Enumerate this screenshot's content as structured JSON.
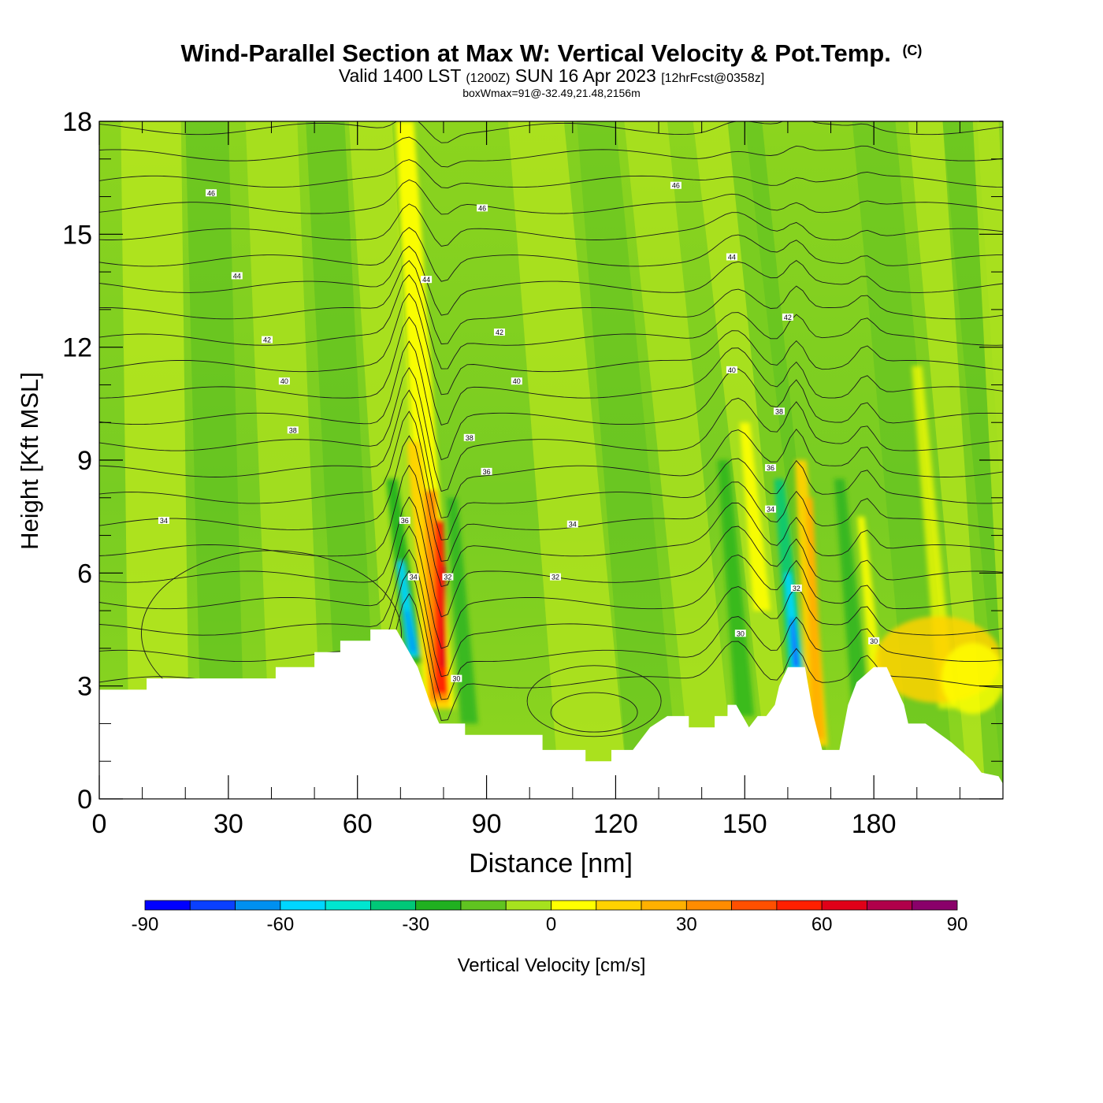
{
  "title": {
    "main": "Wind-Parallel Section at Max W: Vertical Velocity & Pot.Temp.",
    "copyright": "(C)",
    "valid_prefix": "Valid 1400 LST",
    "utc": "(1200Z)",
    "date": "SUN 16 Apr 2023",
    "forecast": "[12hrFcst@0358z]",
    "boxline": "boxWmax=91@-32.49,21.48,2156m"
  },
  "chart_data": {
    "type": "cross-section",
    "xlabel": "Distance [nm]",
    "ylabel": "Height [Kft MSL]",
    "xlim": [
      0,
      210
    ],
    "ylim": [
      0,
      18
    ],
    "x_ticks": [
      0,
      30,
      60,
      90,
      120,
      150,
      180
    ],
    "y_ticks": [
      0,
      3,
      6,
      9,
      12,
      15,
      18
    ],
    "terrain": [
      [
        0,
        2.9
      ],
      [
        11,
        2.9
      ],
      [
        11,
        3.2
      ],
      [
        41,
        3.2
      ],
      [
        41,
        3.5
      ],
      [
        50,
        3.5
      ],
      [
        50,
        3.9
      ],
      [
        56,
        3.9
      ],
      [
        56,
        4.2
      ],
      [
        63,
        4.2
      ],
      [
        63,
        4.5
      ],
      [
        69,
        4.5
      ],
      [
        74,
        3.5
      ],
      [
        77,
        2.5
      ],
      [
        79,
        2.0
      ],
      [
        85,
        2.0
      ],
      [
        85,
        1.7
      ],
      [
        103,
        1.7
      ],
      [
        103,
        1.3
      ],
      [
        113,
        1.3
      ],
      [
        113,
        1.0
      ],
      [
        119,
        1.0
      ],
      [
        119,
        1.3
      ],
      [
        124,
        1.3
      ],
      [
        128,
        1.9
      ],
      [
        132,
        2.2
      ],
      [
        137,
        2.2
      ],
      [
        137,
        1.9
      ],
      [
        143,
        1.9
      ],
      [
        143,
        2.2
      ],
      [
        146,
        2.2
      ],
      [
        146,
        2.5
      ],
      [
        148,
        2.5
      ],
      [
        151,
        1.9
      ],
      [
        153,
        2.2
      ],
      [
        155,
        2.2
      ],
      [
        157,
        2.5
      ],
      [
        158,
        3.0
      ],
      [
        160,
        3.5
      ],
      [
        164,
        3.5
      ],
      [
        166,
        2.2
      ],
      [
        168,
        1.3
      ],
      [
        172,
        1.3
      ],
      [
        174,
        2.5
      ],
      [
        176,
        3.1
      ],
      [
        180,
        3.5
      ],
      [
        183,
        3.5
      ],
      [
        187,
        2.5
      ],
      [
        188,
        2.0
      ],
      [
        192,
        2.0
      ],
      [
        198,
        1.5
      ],
      [
        203,
        1.0
      ],
      [
        205,
        0.7
      ],
      [
        209,
        0.6
      ],
      [
        210,
        0.4
      ]
    ],
    "potential_temperature_contours": [
      30,
      32,
      34,
      36,
      38,
      40,
      42,
      44,
      46
    ],
    "contour_labels": [
      {
        "text": "46",
        "x": 26,
        "y": 16.1
      },
      {
        "text": "46",
        "x": 89,
        "y": 15.7
      },
      {
        "text": "46",
        "x": 134,
        "y": 16.3
      },
      {
        "text": "44",
        "x": 32,
        "y": 13.9
      },
      {
        "text": "44",
        "x": 76,
        "y": 13.8
      },
      {
        "text": "44",
        "x": 147,
        "y": 14.4
      },
      {
        "text": "42",
        "x": 39,
        "y": 12.2
      },
      {
        "text": "42",
        "x": 93,
        "y": 12.4
      },
      {
        "text": "42",
        "x": 160,
        "y": 12.8
      },
      {
        "text": "40",
        "x": 43,
        "y": 11.1
      },
      {
        "text": "40",
        "x": 97,
        "y": 11.1
      },
      {
        "text": "40",
        "x": 147,
        "y": 11.4
      },
      {
        "text": "38",
        "x": 45,
        "y": 9.8
      },
      {
        "text": "38",
        "x": 86,
        "y": 9.6
      },
      {
        "text": "38",
        "x": 158,
        "y": 10.3
      },
      {
        "text": "36",
        "x": 90,
        "y": 8.7
      },
      {
        "text": "36",
        "x": 71,
        "y": 7.4
      },
      {
        "text": "36",
        "x": 156,
        "y": 8.8
      },
      {
        "text": "34",
        "x": 15,
        "y": 7.4
      },
      {
        "text": "34",
        "x": 110,
        "y": 7.3
      },
      {
        "text": "34",
        "x": 156,
        "y": 7.7
      },
      {
        "text": "34",
        "x": 73,
        "y": 5.9
      },
      {
        "text": "32",
        "x": 81,
        "y": 5.9
      },
      {
        "text": "32",
        "x": 106,
        "y": 5.9
      },
      {
        "text": "32",
        "x": 162,
        "y": 5.6
      },
      {
        "text": "30",
        "x": 83,
        "y": 3.2
      },
      {
        "text": "30",
        "x": 149,
        "y": 4.4
      },
      {
        "text": "30",
        "x": 180,
        "y": 4.2
      }
    ],
    "colorbar": {
      "label": "Vertical Velocity [cm/s]",
      "tick_labels": [
        "-90",
        "-60",
        "-30",
        "0",
        "30",
        "60",
        "90"
      ],
      "tick_values": [
        -90,
        -60,
        -30,
        0,
        30,
        60,
        90
      ],
      "bins_start": -90,
      "bin_width": 10,
      "colors": [
        "#0000ff",
        "#0a40ff",
        "#0090f0",
        "#00d6ff",
        "#00e6d0",
        "#00c878",
        "#20b020",
        "#60c420",
        "#a6e21e",
        "#ffff00",
        "#ffd200",
        "#ffb000",
        "#ff8c00",
        "#ff5000",
        "#ff2000",
        "#e00018",
        "#b0004a",
        "#8a006a"
      ]
    },
    "features": [
      {
        "kind": "updraft",
        "x": 80,
        "base": 3.0,
        "top": 7.8,
        "peak": 91
      },
      {
        "kind": "downdraft",
        "x": 72,
        "base": 4.0,
        "top": 5.6,
        "peak": -50
      },
      {
        "kind": "downdraft",
        "x": 162,
        "base": 3.5,
        "top": 5.0,
        "peak": -80
      },
      {
        "kind": "updraft",
        "x": 167,
        "base": 3.0,
        "top": 8.0,
        "peak": 40
      }
    ]
  }
}
